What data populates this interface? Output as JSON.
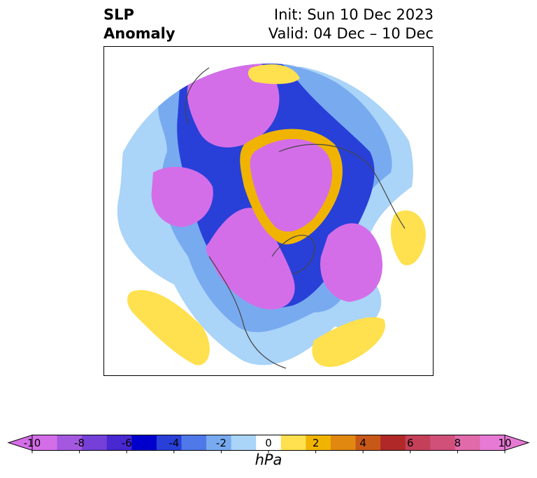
{
  "title": {
    "variable_line1": "SLP",
    "variable_line2": "Anomaly",
    "init_text": "Init: Sun 10 Dec 2023",
    "valid_text": "Valid: 04 Dec – 10 Dec"
  },
  "colorbar": {
    "unit": "hPa",
    "min": -10,
    "max": 10,
    "tick_labels": [
      "-10",
      "-8",
      "-6",
      "-4",
      "-2",
      "0",
      "2",
      "4",
      "6",
      "8",
      "10"
    ],
    "colors": [
      "#d46ee8",
      "#a458e0",
      "#7440d8",
      "#4828d0",
      "#0000cc",
      "#2840d8",
      "#4f78e8",
      "#78aaf0",
      "#aad4f8",
      "#ffffff",
      "#ffe04f",
      "#f0b400",
      "#e08810",
      "#c85818",
      "#b02828",
      "#c44058",
      "#d0507a",
      "#e06aaa",
      "#e67ad4"
    ]
  },
  "map": {
    "projection": "north-polar-stereographic",
    "field": "sea-level-pressure-anomaly"
  }
}
